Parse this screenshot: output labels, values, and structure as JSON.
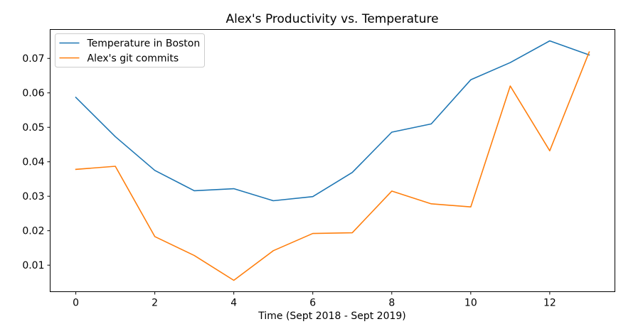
{
  "chart_data": {
    "type": "line",
    "title": "Alex's Productivity vs. Temperature",
    "xlabel": "Time (Sept 2018 - Sept 2019)",
    "ylabel": "",
    "xlim": [
      -0.65,
      13.65
    ],
    "ylim": [
      0.0023,
      0.0784
    ],
    "xticks": [
      0,
      2,
      4,
      6,
      8,
      10,
      12
    ],
    "yticks": [
      0.01,
      0.02,
      0.03,
      0.04,
      0.05,
      0.06,
      0.07
    ],
    "grid": false,
    "legend_position": "upper left",
    "x": [
      0,
      1,
      2,
      3,
      4,
      5,
      6,
      7,
      8,
      9,
      10,
      11,
      12,
      13
    ],
    "series": [
      {
        "name": "Temperature in Boston",
        "color": "#1f77b4",
        "values": [
          0.0587,
          0.0473,
          0.0375,
          0.0316,
          0.0322,
          0.0287,
          0.0299,
          0.0369,
          0.0486,
          0.051,
          0.0638,
          0.0688,
          0.0751,
          0.071
        ]
      },
      {
        "name": "Alex's git commits",
        "color": "#ff7f0e",
        "values": [
          0.0378,
          0.0387,
          0.0183,
          0.0128,
          0.0056,
          0.0142,
          0.0192,
          0.0194,
          0.0315,
          0.0278,
          0.0269,
          0.062,
          0.0432,
          0.0719
        ]
      }
    ]
  }
}
